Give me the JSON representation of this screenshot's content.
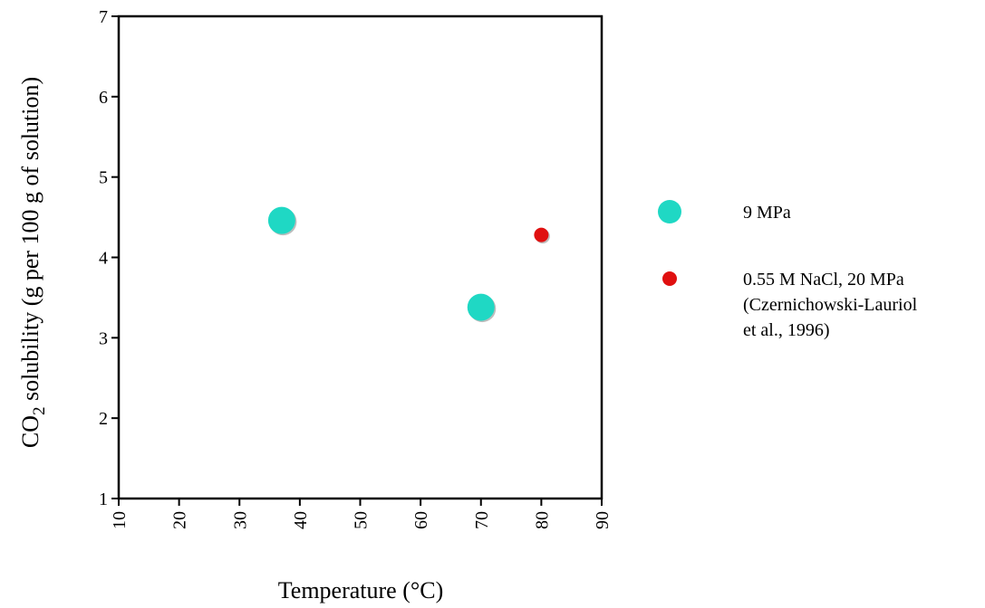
{
  "chart_data": {
    "type": "scatter",
    "xlabel": "Temperature (°C)",
    "ylabel_parts": {
      "pre": "CO",
      "sub": "2",
      "post": " solubility (g per 100 g of solution)"
    },
    "xlim": [
      10,
      90
    ],
    "ylim": [
      1,
      7
    ],
    "xticks": [
      "10",
      "20",
      "30",
      "40",
      "50",
      "60",
      "70",
      "80",
      "90"
    ],
    "yticks": [
      "1",
      "2",
      "3",
      "4",
      "5",
      "6",
      "7"
    ],
    "grid": false,
    "legend_position": "right",
    "series": [
      {
        "name": "9 MPa",
        "color": "#1fd8c4",
        "marker": "large-circle",
        "points": [
          {
            "x": 37,
            "y": 4.46
          },
          {
            "x": 70,
            "y": 3.38
          }
        ]
      },
      {
        "name_lines": [
          "0.55 M NaCl, 20 MPa",
          "(Czernichowski-Lauriol",
          "et al., 1996)"
        ],
        "color": "#e01010",
        "marker": "small-circle",
        "points": [
          {
            "x": 80,
            "y": 4.28
          }
        ]
      }
    ]
  }
}
